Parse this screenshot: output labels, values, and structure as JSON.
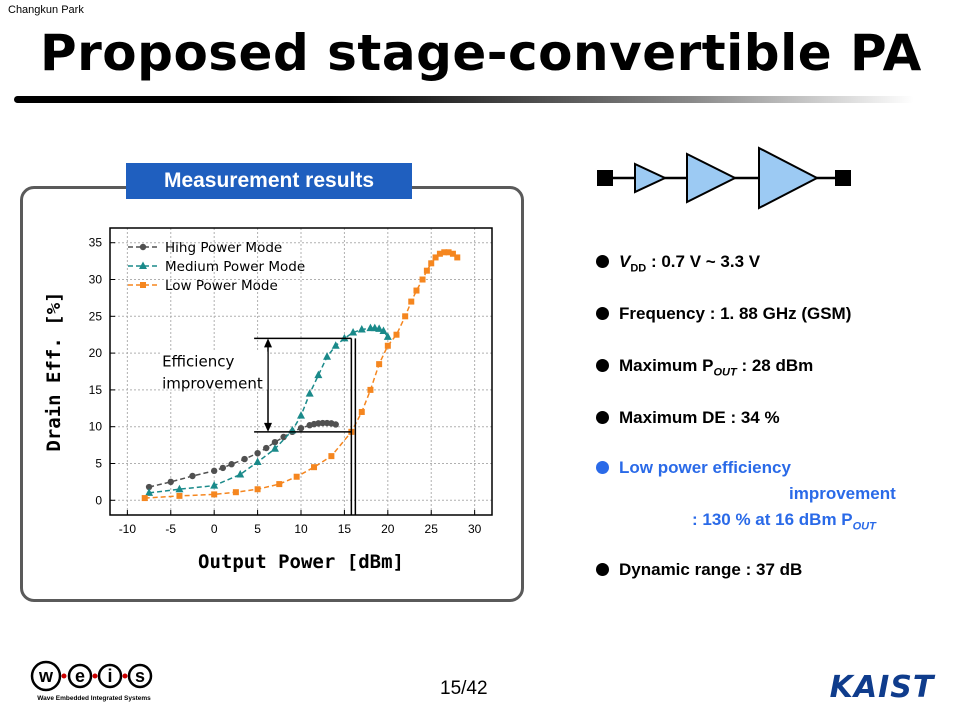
{
  "author": "Changkun Park",
  "title": "Proposed stage-convertible PA",
  "panel_label": "Measurement results",
  "annotation": [
    "Efficiency",
    "improvement"
  ],
  "bullets": [
    {
      "pre": "V",
      "sub": "DD",
      "post": " : 0.7 V ~ 3.3 V",
      "italic_pre": true,
      "color": "#000000"
    },
    {
      "pre": "Frequency : 1. 88 GHz (GSM)",
      "sub": "",
      "post": "",
      "italic_pre": false,
      "color": "#000000"
    },
    {
      "pre": "Maximum P",
      "sub": "OUT",
      "post": " : 28 dBm",
      "italic_pre": false,
      "color": "#000000"
    },
    {
      "pre": "Maximum DE : 34 %",
      "sub": "",
      "post": "",
      "italic_pre": false,
      "color": "#000000"
    },
    {
      "pre": "Low power efficiency",
      "sub": "",
      "post": "",
      "italic_pre": false,
      "color": "#2a6ae8"
    },
    {
      "pre": "Dynamic range : 37 dB",
      "sub": "",
      "post": "",
      "italic_pre": false,
      "color": "#000000"
    }
  ],
  "low_power_cont": {
    "line1": "improvement",
    "line2_pre": ": 130 % at 16 dBm P",
    "line2_sub": "OUT"
  },
  "page_number": "15/42",
  "logos": {
    "weis_letters": [
      "w",
      "e",
      "i",
      "s"
    ],
    "weis_caption": "Wave  Embedded  Integrated  Systems",
    "kaist": "KAIST"
  },
  "chart_data": {
    "type": "line",
    "title": "",
    "xlabel": "Output Power [dBm]",
    "ylabel": "Drain Eff. [%]",
    "xlim": [
      -12,
      32
    ],
    "ylim": [
      -2,
      37
    ],
    "xticks": [
      -10,
      -5,
      0,
      5,
      10,
      15,
      20,
      25,
      30
    ],
    "yticks": [
      0,
      5,
      10,
      15,
      20,
      25,
      30,
      35
    ],
    "grid": true,
    "legend_position": "top-left",
    "annotation_x": 15.8,
    "annotation_y_low": 9.3,
    "annotation_y_high": 22,
    "series": [
      {
        "name": "Hihg Power Mode",
        "color": "#505050",
        "marker": "circle",
        "x": [
          -7.5,
          -5,
          -2.5,
          0,
          1,
          2,
          3.5,
          5,
          6,
          7,
          8,
          9,
          10,
          11,
          11.5,
          12,
          12.5,
          13,
          13.5,
          14
        ],
        "y": [
          1.8,
          2.5,
          3.3,
          4,
          4.4,
          4.9,
          5.6,
          6.4,
          7.1,
          7.9,
          8.6,
          9.3,
          9.8,
          10.2,
          10.35,
          10.45,
          10.5,
          10.5,
          10.45,
          10.3
        ]
      },
      {
        "name": "Medium Power Mode",
        "color": "#1a8a8a",
        "marker": "triangle",
        "x": [
          -7.5,
          -4,
          0,
          3,
          5,
          7,
          9,
          10,
          11,
          12,
          13,
          14,
          15,
          16,
          17,
          18,
          18.5,
          19,
          19.5,
          20
        ],
        "y": [
          1,
          1.5,
          2,
          3.5,
          5.2,
          7,
          9.5,
          11.5,
          14.5,
          17,
          19.5,
          21,
          22,
          22.8,
          23.2,
          23.4,
          23.4,
          23.3,
          23,
          22.2
        ]
      },
      {
        "name": "Low Power Mode",
        "color": "#f5861f",
        "marker": "square",
        "x": [
          -8,
          -4,
          0,
          2.5,
          5,
          7.5,
          9.5,
          11.5,
          13.5,
          15.8,
          17,
          18,
          19,
          20,
          21,
          22,
          22.7,
          23.3,
          24,
          24.5,
          25,
          25.5,
          26,
          26.5,
          27,
          27.5,
          28
        ],
        "y": [
          0.3,
          0.6,
          0.8,
          1.1,
          1.5,
          2.2,
          3.2,
          4.5,
          6,
          9.3,
          12,
          15,
          18.5,
          21,
          22.5,
          25,
          27,
          28.5,
          30,
          31.2,
          32.2,
          33,
          33.5,
          33.7,
          33.7,
          33.5,
          33
        ]
      }
    ]
  }
}
